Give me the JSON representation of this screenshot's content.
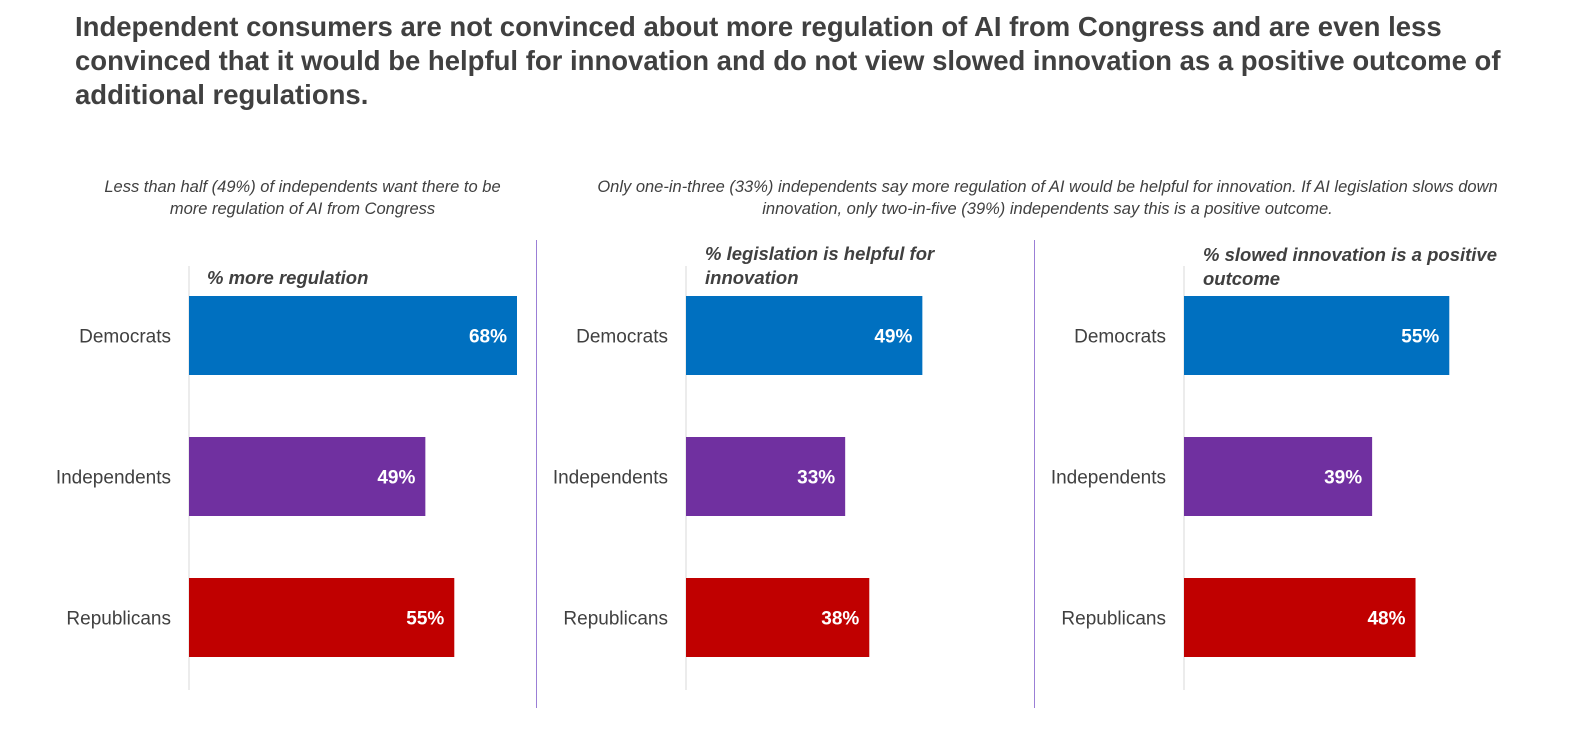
{
  "headline": "Independent consumers are not convinced about more regulation of AI from Congress and are even less convinced that it would be helpful for innovation and do not view slowed innovation as a positive outcome of additional regulations.",
  "subtitles": {
    "left": "Less than half (49%) of independents want there to be more regulation of AI from Congress",
    "right": "Only one-in-three (33%) independents say more regulation of AI would be helpful for innovation. If AI legislation slows down innovation, only two-in-five (39%) independents say this is a positive outcome."
  },
  "colors": {
    "Democrats": "#0070C0",
    "Independents": "#7030A0",
    "Republicans": "#C00000",
    "axis": "#d9d9d9",
    "divider": "#9b7fd6"
  },
  "chart_data": [
    {
      "type": "bar",
      "orientation": "horizontal",
      "title": "% more regulation",
      "categories": [
        "Democrats",
        "Independents",
        "Republicans"
      ],
      "values": [
        68,
        49,
        55
      ],
      "value_labels": [
        "68%",
        "49%",
        "55%"
      ],
      "xlim": [
        0,
        68
      ]
    },
    {
      "type": "bar",
      "orientation": "horizontal",
      "title": "% legislation is helpful for innovation",
      "categories": [
        "Democrats",
        "Independents",
        "Republicans"
      ],
      "values": [
        49,
        33,
        38
      ],
      "value_labels": [
        "49%",
        "33%",
        "38%"
      ],
      "xlim": [
        0,
        68
      ]
    },
    {
      "type": "bar",
      "orientation": "horizontal",
      "title": "% slowed innovation is a positive outcome",
      "categories": [
        "Democrats",
        "Independents",
        "Republicans"
      ],
      "values": [
        55,
        39,
        48
      ],
      "value_labels": [
        "55%",
        "39%",
        "48%"
      ],
      "xlim": [
        0,
        68
      ]
    }
  ]
}
